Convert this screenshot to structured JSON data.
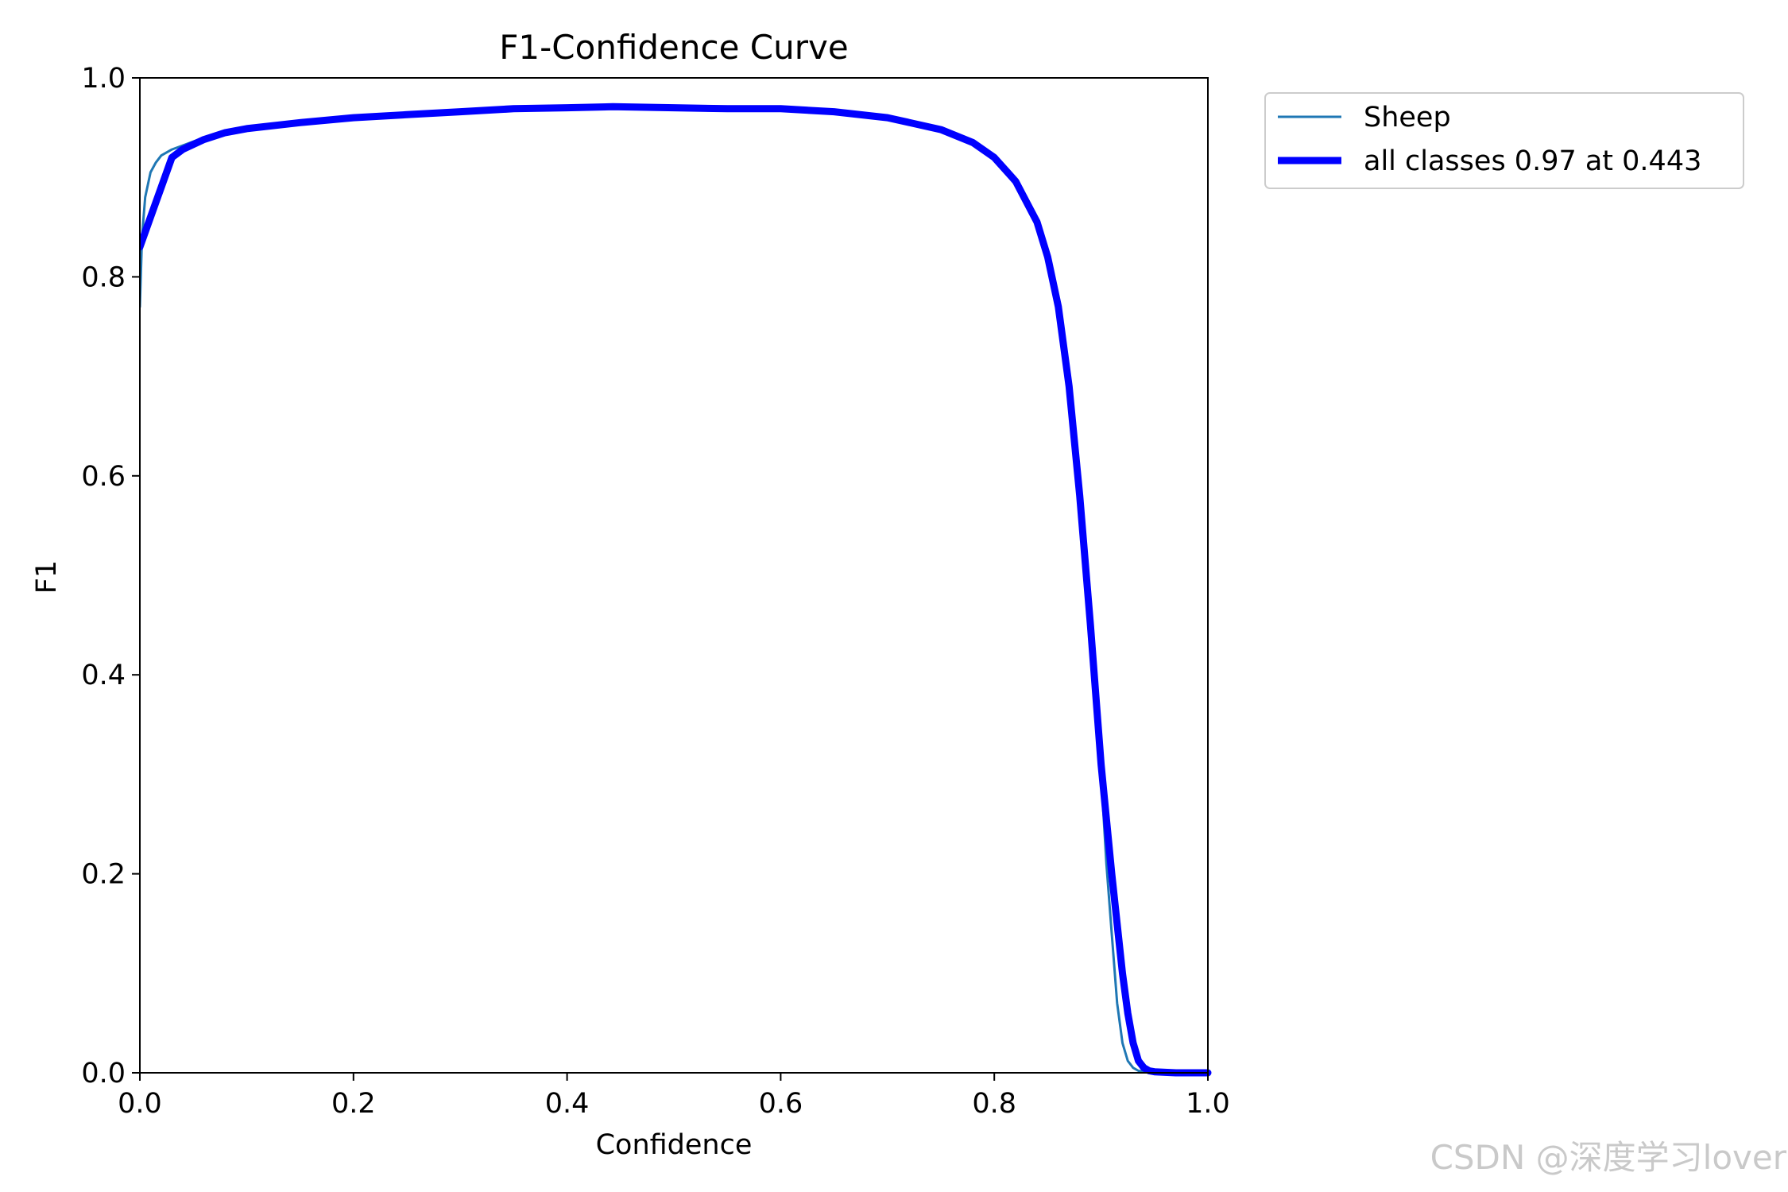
{
  "chart_data": {
    "type": "line",
    "title": "F1-Confidence Curve",
    "xlabel": "Confidence",
    "ylabel": "F1",
    "xlim": [
      0.0,
      1.0
    ],
    "ylim": [
      0.0,
      1.0
    ],
    "xticks": [
      "0.0",
      "0.2",
      "0.4",
      "0.6",
      "0.8",
      "1.0"
    ],
    "yticks": [
      "0.0",
      "0.2",
      "0.4",
      "0.6",
      "0.8",
      "1.0"
    ],
    "grid": false,
    "legend_position": "outside-top-right",
    "series": [
      {
        "name": "Sheep",
        "color": "#1f77b4",
        "x": [
          0.0,
          0.002,
          0.005,
          0.01,
          0.015,
          0.02,
          0.03,
          0.04,
          0.06,
          0.08,
          0.1,
          0.15,
          0.2,
          0.25,
          0.3,
          0.35,
          0.4,
          0.45,
          0.5,
          0.55,
          0.6,
          0.65,
          0.7,
          0.75,
          0.78,
          0.8,
          0.82,
          0.84,
          0.85,
          0.86,
          0.87,
          0.88,
          0.89,
          0.9,
          0.905,
          0.91,
          0.915,
          0.92,
          0.925,
          0.93,
          0.935,
          0.94,
          0.95,
          0.97,
          1.0
        ],
        "y": [
          0.77,
          0.84,
          0.88,
          0.905,
          0.915,
          0.922,
          0.928,
          0.932,
          0.94,
          0.946,
          0.95,
          0.956,
          0.961,
          0.964,
          0.967,
          0.969,
          0.97,
          0.971,
          0.971,
          0.969,
          0.969,
          0.966,
          0.96,
          0.948,
          0.935,
          0.92,
          0.896,
          0.855,
          0.82,
          0.765,
          0.69,
          0.58,
          0.44,
          0.3,
          0.21,
          0.14,
          0.07,
          0.03,
          0.012,
          0.005,
          0.002,
          0.001,
          0.0,
          0.0,
          0.0
        ]
      },
      {
        "name": "all classes 0.97 at 0.443",
        "color": "#0000ff",
        "x": [
          0.0,
          0.01,
          0.02,
          0.03,
          0.04,
          0.06,
          0.08,
          0.1,
          0.15,
          0.2,
          0.25,
          0.3,
          0.35,
          0.4,
          0.443,
          0.5,
          0.55,
          0.6,
          0.65,
          0.7,
          0.75,
          0.78,
          0.8,
          0.82,
          0.84,
          0.85,
          0.86,
          0.87,
          0.88,
          0.89,
          0.9,
          0.91,
          0.92,
          0.925,
          0.93,
          0.935,
          0.94,
          0.945,
          0.95,
          0.97,
          1.0
        ],
        "y": [
          0.83,
          0.86,
          0.89,
          0.92,
          0.928,
          0.938,
          0.945,
          0.949,
          0.955,
          0.96,
          0.963,
          0.966,
          0.969,
          0.97,
          0.971,
          0.97,
          0.969,
          0.969,
          0.966,
          0.96,
          0.948,
          0.935,
          0.92,
          0.896,
          0.855,
          0.82,
          0.77,
          0.69,
          0.58,
          0.45,
          0.31,
          0.2,
          0.1,
          0.06,
          0.03,
          0.012,
          0.005,
          0.002,
          0.001,
          0.0,
          0.0
        ]
      }
    ]
  },
  "watermark": "CSDN @深度学习lover"
}
